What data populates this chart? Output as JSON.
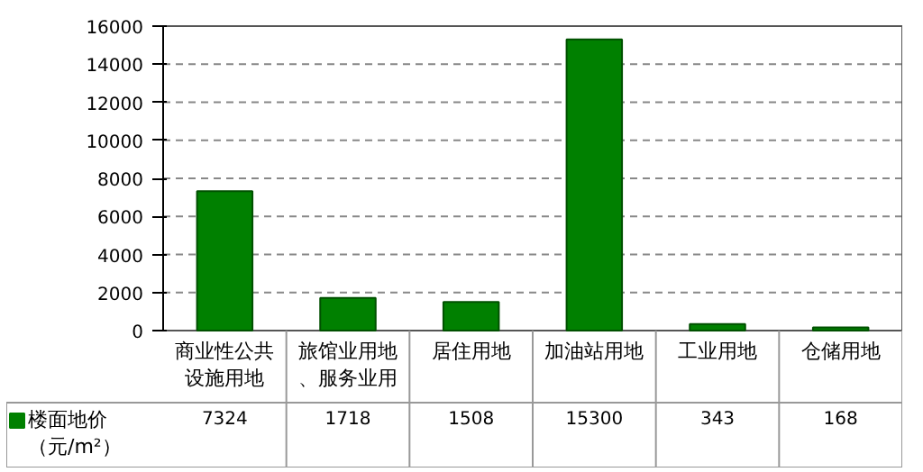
{
  "chart_data": {
    "type": "bar",
    "categories": [
      "商业性公共设施用地",
      "旅馆业用地、服务业用",
      "居住用地",
      "加油站用地",
      "工业用地",
      "仓储用地"
    ],
    "series": [
      {
        "name": "楼面地价（元/m²）",
        "color": "#008000",
        "values": [
          7324,
          1718,
          1508,
          15300,
          343,
          168
        ]
      }
    ],
    "ylim": [
      0,
      16000
    ],
    "yticks": [
      0,
      2000,
      4000,
      6000,
      8000,
      10000,
      12000,
      14000,
      16000
    ],
    "grid": "y",
    "data_labels": true,
    "legend": "bottom"
  }
}
